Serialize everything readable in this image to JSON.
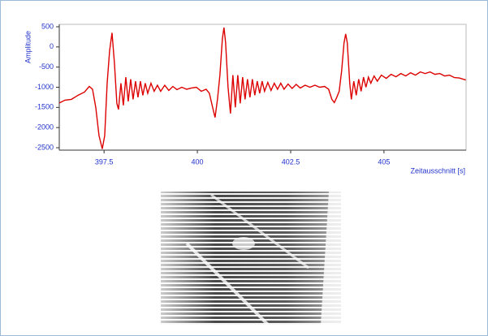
{
  "chart_data": {
    "type": "line",
    "y_label": "Amplitude",
    "x_label": "Zeitausschnitt [s]",
    "xlim": [
      396.3,
      407.2
    ],
    "xticks": [
      397.5,
      400,
      402.5,
      405
    ],
    "ylim": [
      -2560,
      560
    ],
    "yticks": [
      500,
      0,
      -500,
      -1000,
      -1500,
      -2000,
      -2500
    ],
    "color": "#dd0000",
    "x": [
      396.3,
      396.452,
      396.626,
      396.8,
      396.974,
      397.104,
      397.191,
      397.278,
      397.365,
      397.452,
      397.517,
      397.583,
      397.648,
      397.713,
      397.778,
      397.843,
      397.887,
      397.952,
      398.017,
      398.083,
      398.148,
      398.213,
      398.278,
      398.343,
      398.409,
      398.474,
      398.539,
      398.604,
      398.67,
      398.757,
      398.843,
      398.93,
      399.017,
      399.126,
      399.235,
      399.343,
      399.452,
      399.583,
      399.713,
      399.843,
      399.974,
      400.104,
      400.235,
      400.322,
      400.409,
      400.474,
      400.539,
      400.604,
      400.67,
      400.713,
      400.757,
      400.822,
      400.887,
      400.952,
      401.017,
      401.083,
      401.148,
      401.213,
      401.278,
      401.343,
      401.409,
      401.474,
      401.539,
      401.604,
      401.67,
      401.735,
      401.8,
      401.887,
      401.974,
      402.061,
      402.148,
      402.235,
      402.322,
      402.43,
      402.539,
      402.648,
      402.757,
      402.887,
      403.017,
      403.148,
      403.278,
      403.409,
      403.517,
      403.604,
      403.67,
      403.735,
      403.8,
      403.865,
      403.93,
      403.974,
      404.017,
      404.083,
      404.126,
      404.191,
      404.257,
      404.322,
      404.387,
      404.452,
      404.517,
      404.583,
      404.648,
      404.735,
      404.822,
      404.93,
      405.061,
      405.191,
      405.322,
      405.452,
      405.583,
      405.713,
      405.843,
      405.974,
      406.104,
      406.235,
      406.365,
      406.496,
      406.626,
      406.757,
      406.887,
      407.017,
      407.191
    ],
    "values": [
      -1390,
      -1320,
      -1300,
      -1200,
      -1120,
      -980,
      -1050,
      -1500,
      -2200,
      -2530,
      -2200,
      -900,
      -100,
      350,
      -400,
      -1400,
      -1550,
      -900,
      -1450,
      -750,
      -1350,
      -800,
      -1300,
      -850,
      -1250,
      -850,
      -1200,
      -900,
      -1150,
      -900,
      -1100,
      -950,
      -1100,
      -950,
      -1080,
      -980,
      -1060,
      -1000,
      -1050,
      -1020,
      -1000,
      -1100,
      -1050,
      -1150,
      -1500,
      -1750,
      -1300,
      -700,
      200,
      480,
      100,
      -1000,
      -1650,
      -700,
      -1500,
      -700,
      -1400,
      -750,
      -1300,
      -800,
      -1250,
      -800,
      -1200,
      -850,
      -1150,
      -850,
      -1100,
      -880,
      -1080,
      -900,
      -1050,
      -900,
      -1050,
      -920,
      -1030,
      -930,
      -1020,
      -950,
      -1000,
      -950,
      -1000,
      -980,
      -1050,
      -1300,
      -1380,
      -1250,
      -1100,
      -600,
      100,
      320,
      100,
      -900,
      -1300,
      -850,
      -1200,
      -800,
      -1100,
      -750,
      -1000,
      -750,
      -900,
      -720,
      -850,
      -700,
      -780,
      -680,
      -740,
      -660,
      -720,
      -640,
      -700,
      -620,
      -660,
      -620,
      -680,
      -660,
      -720,
      -700,
      -760,
      -770,
      -820
    ]
  }
}
